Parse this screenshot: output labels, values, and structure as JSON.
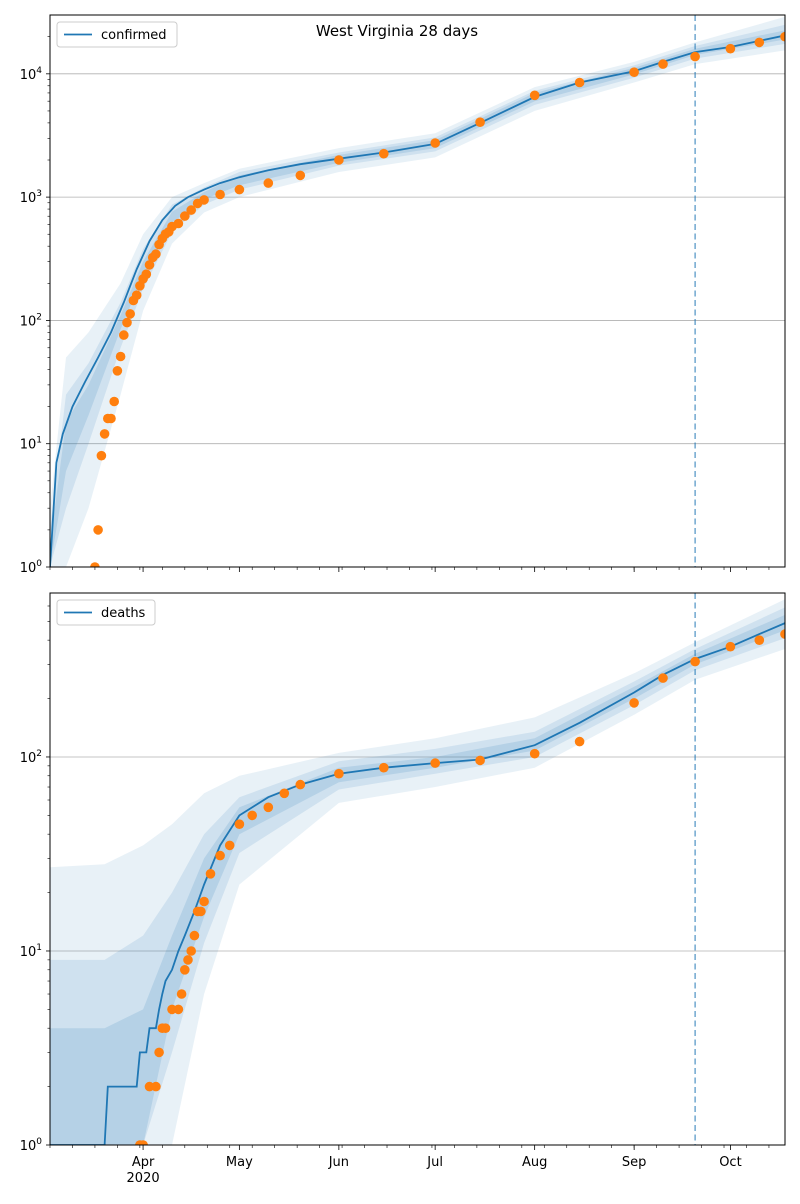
{
  "figure": {
    "title": "West Virginia 28 days"
  },
  "x_ticks": [
    {
      "label": "Apr",
      "sub": "2020",
      "date": "2020-04-01"
    },
    {
      "label": "May",
      "sub": "",
      "date": "2020-05-01"
    },
    {
      "label": "Jun",
      "sub": "",
      "date": "2020-06-01"
    },
    {
      "label": "Jul",
      "sub": "",
      "date": "2020-07-01"
    },
    {
      "label": "Aug",
      "sub": "",
      "date": "2020-08-01"
    },
    {
      "label": "Sep",
      "sub": "",
      "date": "2020-09-01"
    },
    {
      "label": "Oct",
      "sub": "",
      "date": "2020-10-01"
    }
  ],
  "chart_data": [
    {
      "type": "line",
      "name": "confirmed",
      "title": "West Virginia 28 days",
      "xlim": [
        "2020-03-03",
        "2020-10-18"
      ],
      "ylim": [
        1,
        30000
      ],
      "yscale": "log",
      "y_ticks": [
        {
          "value": 1,
          "label": "10",
          "exp": "0"
        },
        {
          "value": 10,
          "label": "10",
          "exp": "1"
        },
        {
          "value": 100,
          "label": "10",
          "exp": "2"
        },
        {
          "value": 1000,
          "label": "10",
          "exp": "3"
        },
        {
          "value": 10000,
          "label": "10",
          "exp": "4"
        }
      ],
      "grid": "y",
      "legend": "top-left",
      "forecast_start": "2020-09-20",
      "series": [
        {
          "name": "confirmed",
          "kind": "model-median",
          "color": "#1f77b4",
          "x": [
            "2020-03-03",
            "2020-03-05",
            "2020-03-07",
            "2020-03-10",
            "2020-03-14",
            "2020-03-18",
            "2020-03-22",
            "2020-03-26",
            "2020-03-30",
            "2020-04-03",
            "2020-04-07",
            "2020-04-11",
            "2020-04-15",
            "2020-04-20",
            "2020-04-25",
            "2020-05-01",
            "2020-05-10",
            "2020-05-20",
            "2020-06-01",
            "2020-06-15",
            "2020-07-01",
            "2020-07-15",
            "2020-08-01",
            "2020-08-15",
            "2020-09-01",
            "2020-09-10",
            "2020-09-20",
            "2020-10-01",
            "2020-10-10",
            "2020-10-18"
          ],
          "y": [
            1,
            7,
            12,
            20,
            32,
            50,
            80,
            140,
            260,
            440,
            650,
            850,
            1000,
            1150,
            1300,
            1450,
            1650,
            1850,
            2050,
            2300,
            2700,
            4000,
            6500,
            8500,
            10500,
            12500,
            15000,
            16500,
            18500,
            20500
          ]
        },
        {
          "name": "observed",
          "kind": "points",
          "color": "#ff7f0e",
          "x": [
            "2020-03-17",
            "2020-03-18",
            "2020-03-19",
            "2020-03-20",
            "2020-03-21",
            "2020-03-22",
            "2020-03-23",
            "2020-03-24",
            "2020-03-25",
            "2020-03-26",
            "2020-03-27",
            "2020-03-28",
            "2020-03-29",
            "2020-03-30",
            "2020-03-31",
            "2020-04-01",
            "2020-04-02",
            "2020-04-03",
            "2020-04-04",
            "2020-04-05",
            "2020-04-06",
            "2020-04-07",
            "2020-04-08",
            "2020-04-09",
            "2020-04-10",
            "2020-04-12",
            "2020-04-14",
            "2020-04-16",
            "2020-04-18",
            "2020-04-20",
            "2020-04-25",
            "2020-05-01",
            "2020-05-10",
            "2020-05-20",
            "2020-06-01",
            "2020-06-15",
            "2020-07-01",
            "2020-07-15",
            "2020-08-01",
            "2020-08-15",
            "2020-09-01",
            "2020-09-10",
            "2020-09-20",
            "2020-10-01",
            "2020-10-10",
            "2020-10-18"
          ],
          "y": [
            1,
            2,
            8,
            12,
            16,
            16,
            22,
            39,
            51,
            76,
            96,
            113,
            145,
            160,
            191,
            217,
            237,
            282,
            324,
            345,
            412,
            462,
            502,
            523,
            577,
            611,
            702,
            785,
            890,
            950,
            1050,
            1150,
            1300,
            1500,
            2000,
            2250,
            2750,
            4050,
            6700,
            8500,
            10300,
            12000,
            13800,
            16000,
            18000,
            20000
          ]
        }
      ],
      "bands": [
        {
          "name": "outer",
          "color": "#1f77b4",
          "opacity": 0.1,
          "x": [
            "2020-03-03",
            "2020-03-08",
            "2020-03-15",
            "2020-03-25",
            "2020-04-01",
            "2020-04-10",
            "2020-04-20",
            "2020-05-01",
            "2020-06-01",
            "2020-07-01",
            "2020-08-01",
            "2020-09-01",
            "2020-09-20",
            "2020-10-18"
          ],
          "lower": [
            1,
            1,
            3,
            25,
            120,
            420,
            750,
            1000,
            1600,
            2100,
            5000,
            8500,
            12000,
            15500
          ],
          "upper": [
            3,
            50,
            80,
            200,
            500,
            1000,
            1300,
            1700,
            2500,
            3300,
            7800,
            12500,
            18000,
            29000
          ]
        },
        {
          "name": "middle",
          "color": "#1f77b4",
          "opacity": 0.12,
          "x": [
            "2020-03-03",
            "2020-03-08",
            "2020-03-15",
            "2020-03-25",
            "2020-04-01",
            "2020-04-10",
            "2020-04-20",
            "2020-05-01",
            "2020-06-01",
            "2020-07-01",
            "2020-08-01",
            "2020-09-01",
            "2020-09-20",
            "2020-10-18"
          ],
          "lower": [
            1,
            3,
            10,
            60,
            180,
            520,
            870,
            1150,
            1800,
            2350,
            5600,
            9300,
            13300,
            17500
          ],
          "upper": [
            2,
            25,
            45,
            140,
            380,
            870,
            1200,
            1600,
            2300,
            3050,
            7300,
            11700,
            16800,
            25000
          ]
        },
        {
          "name": "inner",
          "color": "#1f77b4",
          "opacity": 0.15,
          "x": [
            "2020-03-03",
            "2020-03-08",
            "2020-03-15",
            "2020-03-25",
            "2020-04-01",
            "2020-04-10",
            "2020-04-20",
            "2020-05-01",
            "2020-06-01",
            "2020-07-01",
            "2020-08-01",
            "2020-09-01",
            "2020-09-20",
            "2020-10-18"
          ],
          "lower": [
            1,
            6,
            17,
            85,
            230,
            620,
            960,
            1250,
            1900,
            2500,
            6000,
            9900,
            14200,
            19000
          ],
          "upper": [
            1.5,
            15,
            30,
            110,
            300,
            760,
            1100,
            1500,
            2200,
            2900,
            7000,
            11200,
            16000,
            22500
          ]
        }
      ]
    },
    {
      "type": "line",
      "name": "deaths",
      "xlim": [
        "2020-03-03",
        "2020-10-18"
      ],
      "ylim": [
        1,
        700
      ],
      "yscale": "log",
      "y_ticks": [
        {
          "value": 1,
          "label": "10",
          "exp": "0"
        },
        {
          "value": 10,
          "label": "10",
          "exp": "1"
        },
        {
          "value": 100,
          "label": "10",
          "exp": "2"
        }
      ],
      "grid": "y",
      "legend": "top-left",
      "forecast_start": "2020-09-20",
      "series": [
        {
          "name": "deaths",
          "kind": "model-median",
          "color": "#1f77b4",
          "x": [
            "2020-03-03",
            "2020-03-20",
            "2020-03-21",
            "2020-03-30",
            "2020-03-31",
            "2020-04-02",
            "2020-04-03",
            "2020-04-05",
            "2020-04-06",
            "2020-04-07",
            "2020-04-08",
            "2020-04-10",
            "2020-04-12",
            "2020-04-14",
            "2020-04-17",
            "2020-04-20",
            "2020-04-25",
            "2020-05-01",
            "2020-05-10",
            "2020-05-20",
            "2020-06-01",
            "2020-06-15",
            "2020-07-01",
            "2020-07-15",
            "2020-08-01",
            "2020-08-15",
            "2020-09-01",
            "2020-09-10",
            "2020-09-20",
            "2020-10-01",
            "2020-10-10",
            "2020-10-18"
          ],
          "y": [
            1,
            1,
            2,
            2,
            3,
            3,
            4,
            4,
            5,
            6,
            7,
            8,
            10,
            12,
            16,
            22,
            35,
            50,
            62,
            72,
            82,
            88,
            93,
            97,
            115,
            150,
            215,
            265,
            320,
            370,
            430,
            490
          ]
        },
        {
          "name": "observed",
          "kind": "points",
          "color": "#ff7f0e",
          "x": [
            "2020-03-31",
            "2020-04-01",
            "2020-04-03",
            "2020-04-05",
            "2020-04-06",
            "2020-04-07",
            "2020-04-08",
            "2020-04-10",
            "2020-04-12",
            "2020-04-13",
            "2020-04-14",
            "2020-04-15",
            "2020-04-16",
            "2020-04-17",
            "2020-04-18",
            "2020-04-19",
            "2020-04-20",
            "2020-04-22",
            "2020-04-25",
            "2020-04-28",
            "2020-05-01",
            "2020-05-05",
            "2020-05-10",
            "2020-05-15",
            "2020-05-20",
            "2020-06-01",
            "2020-06-15",
            "2020-07-01",
            "2020-07-15",
            "2020-08-01",
            "2020-08-15",
            "2020-09-01",
            "2020-09-10",
            "2020-09-20",
            "2020-10-01",
            "2020-10-10",
            "2020-10-18"
          ],
          "y": [
            1,
            1,
            2,
            2,
            3,
            4,
            4,
            5,
            5,
            6,
            8,
            9,
            10,
            12,
            16,
            16,
            18,
            25,
            31,
            35,
            45,
            50,
            55,
            65,
            72,
            82,
            88,
            93,
            96,
            104,
            120,
            190,
            255,
            310,
            370,
            400,
            430
          ]
        }
      ],
      "bands": [
        {
          "name": "outer",
          "color": "#1f77b4",
          "opacity": 0.1,
          "x": [
            "2020-03-03",
            "2020-03-20",
            "2020-04-01",
            "2020-04-10",
            "2020-04-20",
            "2020-05-01",
            "2020-06-01",
            "2020-07-01",
            "2020-08-01",
            "2020-09-01",
            "2020-09-20",
            "2020-10-18"
          ],
          "lower": [
            1,
            1,
            1,
            1,
            6,
            22,
            58,
            70,
            88,
            165,
            250,
            360
          ],
          "upper": [
            27,
            28,
            35,
            45,
            65,
            80,
            105,
            125,
            160,
            270,
            390,
            650
          ]
        },
        {
          "name": "middle",
          "color": "#1f77b4",
          "opacity": 0.12,
          "x": [
            "2020-03-03",
            "2020-03-20",
            "2020-04-01",
            "2020-04-10",
            "2020-04-20",
            "2020-05-01",
            "2020-06-01",
            "2020-07-01",
            "2020-08-01",
            "2020-09-01",
            "2020-09-20",
            "2020-10-18"
          ],
          "lower": [
            1,
            1,
            1,
            3,
            11,
            32,
            68,
            82,
            100,
            185,
            280,
            410
          ],
          "upper": [
            9,
            9,
            12,
            20,
            40,
            62,
            95,
            110,
            135,
            245,
            360,
            590
          ]
        },
        {
          "name": "inner",
          "color": "#1f77b4",
          "opacity": 0.15,
          "x": [
            "2020-03-03",
            "2020-03-20",
            "2020-04-01",
            "2020-04-10",
            "2020-04-20",
            "2020-05-01",
            "2020-06-01",
            "2020-07-01",
            "2020-08-01",
            "2020-09-01",
            "2020-09-20",
            "2020-10-18"
          ],
          "lower": [
            1,
            1,
            1,
            5,
            15,
            40,
            74,
            88,
            108,
            200,
            300,
            450
          ],
          "upper": [
            4,
            4,
            5,
            12,
            30,
            55,
            88,
            100,
            125,
            230,
            340,
            540
          ]
        }
      ]
    }
  ]
}
